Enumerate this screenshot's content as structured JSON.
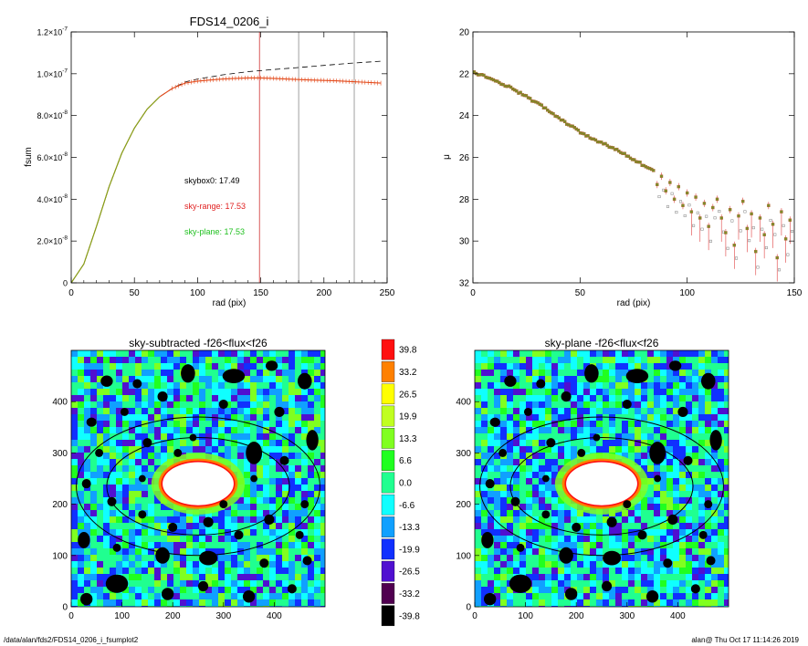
{
  "chart_data": [
    {
      "type": "line",
      "title": "FDS14_0206_i",
      "xlabel": "rad (pix)",
      "ylabel": "fsum",
      "xlim": [
        0,
        250
      ],
      "ylim": [
        0,
        1.2e-07
      ],
      "x_ticks": [
        {
          "value": 0,
          "label": "0"
        },
        {
          "value": 50,
          "label": "50"
        },
        {
          "value": 100,
          "label": "100"
        },
        {
          "value": 150,
          "label": "150"
        },
        {
          "value": 200,
          "label": "200"
        },
        {
          "value": 250,
          "label": "250"
        }
      ],
      "y_ticks": [
        {
          "value": 0,
          "mantissa": "0",
          "exp": ""
        },
        {
          "value": 2e-08,
          "mantissa": "2.0×10",
          "exp": "-8"
        },
        {
          "value": 4e-08,
          "mantissa": "4.0×10",
          "exp": "-8"
        },
        {
          "value": 6e-08,
          "mantissa": "6.0×10",
          "exp": "-8"
        },
        {
          "value": 8e-08,
          "mantissa": "8.0×10",
          "exp": "-8"
        },
        {
          "value": 1e-07,
          "mantissa": "1.0×10",
          "exp": "-7"
        },
        {
          "value": 1.2e-07,
          "mantissa": "1.2×10",
          "exp": "-7"
        }
      ],
      "series": [
        {
          "style": "dashed",
          "color": "#000000",
          "x": [
            0,
            10,
            20,
            30,
            40,
            50,
            60,
            70,
            80,
            90,
            100,
            120,
            140,
            160,
            180,
            200,
            220,
            245
          ],
          "y": [
            0,
            9e-09,
            2.7e-08,
            4.6e-08,
            6.2e-08,
            7.4e-08,
            8.3e-08,
            8.9e-08,
            9.3e-08,
            9.6e-08,
            9.75e-08,
            9.95e-08,
            1.01e-07,
            1.02e-07,
            1.03e-07,
            1.04e-07,
            1.05e-07,
            1.06e-07
          ]
        },
        {
          "style": "solid",
          "color": "#e34a1b",
          "x": [
            0,
            10,
            20,
            30,
            40,
            50,
            60,
            70,
            80,
            90,
            100,
            110,
            120,
            130,
            140,
            150,
            160,
            170,
            180,
            190,
            200,
            210,
            220,
            230,
            245
          ],
          "y": [
            0,
            9e-09,
            2.7e-08,
            4.6e-08,
            6.2e-08,
            7.4e-08,
            8.3e-08,
            8.9e-08,
            9.3e-08,
            9.55e-08,
            9.65e-08,
            9.7e-08,
            9.75e-08,
            9.78e-08,
            9.8e-08,
            9.8e-08,
            9.78e-08,
            9.75e-08,
            9.72e-08,
            9.7e-08,
            9.68e-08,
            9.66e-08,
            9.63e-08,
            9.6e-08,
            9.55e-08
          ]
        },
        {
          "style": "solid",
          "color": "#7fa81b",
          "x": [
            0,
            10,
            20,
            30,
            40,
            50,
            60,
            70
          ],
          "y": [
            0,
            9e-09,
            2.7e-08,
            4.6e-08,
            6.2e-08,
            7.4e-08,
            8.3e-08,
            8.9e-08
          ]
        }
      ],
      "vlines": [
        {
          "x": 149,
          "color": "#d03030"
        },
        {
          "x": 180,
          "color": "#888888"
        },
        {
          "x": 224,
          "color": "#888888"
        }
      ],
      "annotations": [
        {
          "text": "skybox0: 17.49",
          "color": "#000000"
        },
        {
          "text": "sky-range: 17.53",
          "color": "#e02020"
        },
        {
          "text": "sky-plane: 17.53",
          "color": "#20c020"
        }
      ]
    },
    {
      "type": "scatter",
      "xlabel": "rad (pix)",
      "ylabel": "μ",
      "xlim": [
        0,
        150
      ],
      "ylim": [
        32,
        20
      ],
      "x_ticks": [
        {
          "value": 0,
          "label": "0"
        },
        {
          "value": 50,
          "label": "50"
        },
        {
          "value": 100,
          "label": "100"
        },
        {
          "value": 150,
          "label": "150"
        }
      ],
      "y_ticks": [
        {
          "value": 20,
          "label": "20"
        },
        {
          "value": 22,
          "label": "22"
        },
        {
          "value": 24,
          "label": "24"
        },
        {
          "value": 26,
          "label": "26"
        },
        {
          "value": 28,
          "label": "28"
        },
        {
          "value": 30,
          "label": "30"
        },
        {
          "value": 32,
          "label": "32"
        }
      ],
      "profile_x": [
        0,
        10,
        20,
        30,
        40,
        50,
        60,
        70,
        80,
        85
      ],
      "profile_y": [
        21.9,
        22.3,
        22.8,
        23.4,
        24.1,
        24.8,
        25.3,
        25.8,
        26.4,
        26.7
      ],
      "scatter_points": [
        {
          "x": 86,
          "y": 27.3
        },
        {
          "x": 88,
          "y": 26.9
        },
        {
          "x": 90,
          "y": 27.6
        },
        {
          "x": 92,
          "y": 27.2
        },
        {
          "x": 94,
          "y": 28.0
        },
        {
          "x": 96,
          "y": 27.4
        },
        {
          "x": 98,
          "y": 28.3
        },
        {
          "x": 100,
          "y": 27.7
        },
        {
          "x": 102,
          "y": 28.6
        },
        {
          "x": 104,
          "y": 27.9
        },
        {
          "x": 106,
          "y": 28.9
        },
        {
          "x": 108,
          "y": 28.2
        },
        {
          "x": 110,
          "y": 29.3
        },
        {
          "x": 112,
          "y": 28.4
        },
        {
          "x": 114,
          "y": 28.0
        },
        {
          "x": 116,
          "y": 28.9
        },
        {
          "x": 118,
          "y": 29.6
        },
        {
          "x": 120,
          "y": 28.5
        },
        {
          "x": 122,
          "y": 30.2
        },
        {
          "x": 124,
          "y": 28.8
        },
        {
          "x": 126,
          "y": 28.1
        },
        {
          "x": 128,
          "y": 29.4
        },
        {
          "x": 130,
          "y": 28.7
        },
        {
          "x": 132,
          "y": 30.5
        },
        {
          "x": 134,
          "y": 28.9
        },
        {
          "x": 136,
          "y": 29.7
        },
        {
          "x": 138,
          "y": 28.3
        },
        {
          "x": 140,
          "y": 29.2
        },
        {
          "x": 142,
          "y": 30.8
        },
        {
          "x": 144,
          "y": 28.6
        },
        {
          "x": 146,
          "y": 29.9
        },
        {
          "x": 148,
          "y": 29.0
        }
      ]
    },
    {
      "type": "heatmap",
      "title": "sky-subtracted -f26<flux<f26",
      "xlim": [
        0,
        500
      ],
      "ylim": [
        0,
        500
      ],
      "x_ticks": [
        {
          "value": 0,
          "label": "0"
        },
        {
          "value": 100,
          "label": "100"
        },
        {
          "value": 200,
          "label": "200"
        },
        {
          "value": 300,
          "label": "300"
        },
        {
          "value": 400,
          "label": "400"
        }
      ],
      "y_ticks": [
        {
          "value": 0,
          "label": "0"
        },
        {
          "value": 100,
          "label": "100"
        },
        {
          "value": 200,
          "label": "200"
        },
        {
          "value": 300,
          "label": "300"
        },
        {
          "value": 400,
          "label": "400"
        }
      ],
      "ellipses": [
        {
          "cx": 250,
          "cy": 235,
          "rx": 240,
          "ry": 135
        },
        {
          "cx": 250,
          "cy": 235,
          "rx": 180,
          "ry": 95
        }
      ],
      "saturated_core": {
        "cx": 250,
        "cy": 240,
        "rx": 70,
        "ry": 42
      }
    },
    {
      "type": "heatmap",
      "title": "sky-plane -f26<flux<f26",
      "xlim": [
        0,
        500
      ],
      "ylim": [
        0,
        500
      ],
      "x_ticks": [
        {
          "value": 0,
          "label": "0"
        },
        {
          "value": 100,
          "label": "100"
        },
        {
          "value": 200,
          "label": "200"
        },
        {
          "value": 300,
          "label": "300"
        },
        {
          "value": 400,
          "label": "400"
        }
      ],
      "y_ticks": [
        {
          "value": 0,
          "label": "0"
        },
        {
          "value": 100,
          "label": "100"
        },
        {
          "value": 200,
          "label": "200"
        },
        {
          "value": 300,
          "label": "300"
        },
        {
          "value": 400,
          "label": "400"
        }
      ],
      "ellipses": [
        {
          "cx": 250,
          "cy": 235,
          "rx": 240,
          "ry": 135
        },
        {
          "cx": 250,
          "cy": 235,
          "rx": 180,
          "ry": 95
        }
      ],
      "saturated_core": {
        "cx": 250,
        "cy": 240,
        "rx": 70,
        "ry": 42
      }
    }
  ],
  "colorbar": {
    "entries": [
      {
        "label": "39.8",
        "color": "#ff1010"
      },
      {
        "label": "33.2",
        "color": "#ff8000"
      },
      {
        "label": "26.5",
        "color": "#ffff00"
      },
      {
        "label": "19.9",
        "color": "#c0ff20"
      },
      {
        "label": "13.3",
        "color": "#80ff20"
      },
      {
        "label": "6.6",
        "color": "#20ff20"
      },
      {
        "label": "0.0",
        "color": "#20ff90"
      },
      {
        "label": "-6.6",
        "color": "#10ffff"
      },
      {
        "label": "-13.3",
        "color": "#10a0ff"
      },
      {
        "label": "-19.9",
        "color": "#1030ff"
      },
      {
        "label": "-26.5",
        "color": "#5010d0"
      },
      {
        "label": "-33.2",
        "color": "#500050"
      },
      {
        "label": "-39.8",
        "color": "#000000"
      }
    ]
  },
  "footer": {
    "path": "/data/alan/fds2/FDS14_0206_i_fsumplot2",
    "stamp": "alan@  Thu Oct 17 11:14:26 2019"
  }
}
